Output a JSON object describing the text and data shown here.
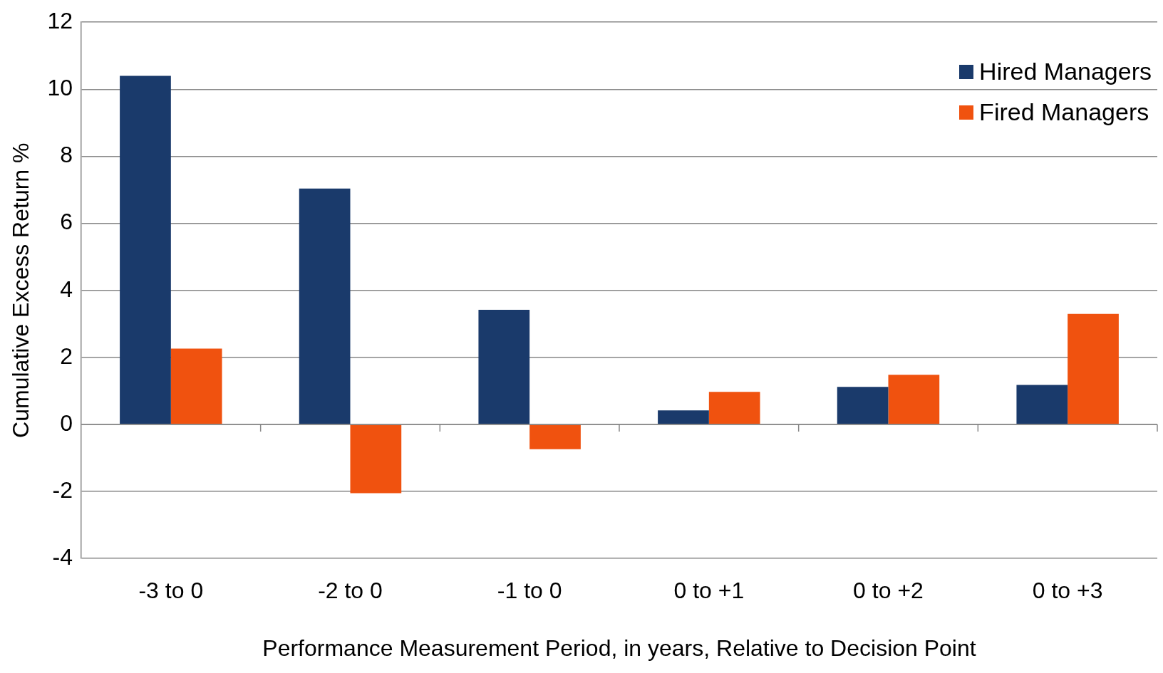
{
  "chart_data": {
    "type": "bar",
    "xlabel": "Performance Measurement Period, in years, Relative to Decision Point",
    "ylabel": "Cumulative Excess Return %",
    "categories": [
      "-3 to 0",
      "-2 to 0",
      "-1 to 0",
      "0 to +1",
      "0 to +2",
      "0 to +3"
    ],
    "series": [
      {
        "name": "Hired Managers",
        "color": "#1a3a6b",
        "values": [
          10.4,
          7.04,
          3.42,
          0.42,
          1.12,
          1.18
        ]
      },
      {
        "name": "Fired Managers",
        "color": "#f0520f",
        "values": [
          2.26,
          -2.05,
          -0.74,
          0.97,
          1.48,
          3.3
        ]
      }
    ],
    "ylim": [
      -4,
      12
    ],
    "yticks": [
      -4,
      -2,
      0,
      2,
      4,
      6,
      8,
      10,
      12
    ],
    "grid": "y",
    "legend": "top right"
  }
}
